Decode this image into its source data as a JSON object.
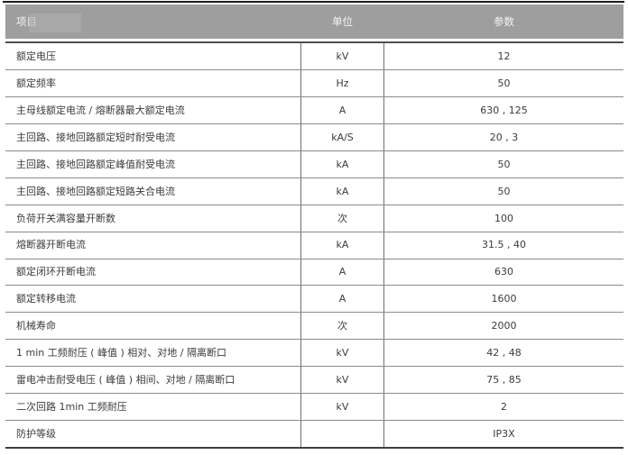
{
  "table": {
    "columns": [
      {
        "label": "项目"
      },
      {
        "label": "单位"
      },
      {
        "label": "参数"
      }
    ],
    "rows": [
      {
        "item": "额定电压",
        "unit": "kV",
        "value": "12"
      },
      {
        "item": "额定频率",
        "unit": "Hz",
        "value": "50"
      },
      {
        "item": "主母线额定电流 / 熔断器最大额定电流",
        "unit": "A",
        "value": "630 , 125"
      },
      {
        "item": "主回路、接地回路额定短时耐受电流",
        "unit": "kA/S",
        "value": "20 , 3"
      },
      {
        "item": "主回路、接地回路额定峰值耐受电流",
        "unit": "kA",
        "value": "50"
      },
      {
        "item": "主回路、接地回路额定短路关合电流",
        "unit": "kA",
        "value": "50"
      },
      {
        "item": "负荷开关满容量开断数",
        "unit": "次",
        "value": "100"
      },
      {
        "item": "熔断器开断电流",
        "unit": "kA",
        "value": "31.5 , 40"
      },
      {
        "item": "额定闭环开断电流",
        "unit": "A",
        "value": "630"
      },
      {
        "item": "额定转移电流",
        "unit": "A",
        "value": "1600"
      },
      {
        "item": "机械寿命",
        "unit": "次",
        "value": "2000"
      },
      {
        "item": "1 min 工频耐压 ( 峰值 ) 相对、对地 / 隔离断口",
        "unit": "kV",
        "value": "42 , 48"
      },
      {
        "item": "雷电冲击耐受电压 ( 峰值 ) 相间、对地 / 隔离断口",
        "unit": "kV",
        "value": "75 , 85"
      },
      {
        "item": "二次回路 1min 工频耐压",
        "unit": "kV",
        "value": "2"
      },
      {
        "item": "防护等级",
        "unit": "",
        "value": "IP3X"
      }
    ],
    "colors": {
      "header_bg": "#9e9e9e",
      "header_text": "#f4f4f4",
      "row_text": "#3c3c3c",
      "grid_line": "#8a8a8a",
      "heavy_line": "#4f4f4f"
    }
  }
}
